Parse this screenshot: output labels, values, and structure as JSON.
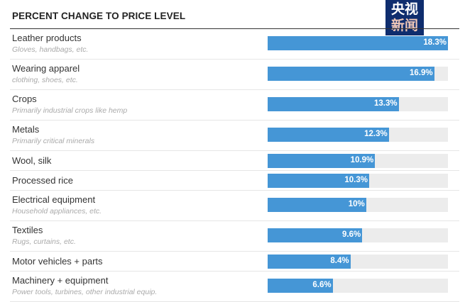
{
  "chart_data": {
    "type": "bar",
    "orientation": "horizontal",
    "title": "PERCENT CHANGE TO PRICE LEVEL",
    "xlim": [
      0,
      18.3
    ],
    "bar_color": "#4596d6",
    "track_color": "#ececec",
    "categories": [
      {
        "label": "Leather products",
        "sub": "Gloves, handbags, etc.",
        "value": 18.3,
        "value_label": "18.3%"
      },
      {
        "label": "Wearing apparel",
        "sub": "clothing, shoes, etc.",
        "value": 16.9,
        "value_label": "16.9%"
      },
      {
        "label": "Crops",
        "sub": "Primarily industrial crops like hemp",
        "value": 13.3,
        "value_label": "13.3%"
      },
      {
        "label": "Metals",
        "sub": "Primarily critical minerals",
        "value": 12.3,
        "value_label": "12.3%"
      },
      {
        "label": "Wool, silk",
        "sub": "",
        "value": 10.9,
        "value_label": "10.9%"
      },
      {
        "label": "Processed rice",
        "sub": "",
        "value": 10.3,
        "value_label": "10.3%"
      },
      {
        "label": "Electrical equipment",
        "sub": "Household appliances, etc.",
        "value": 10,
        "value_label": "10%"
      },
      {
        "label": "Textiles",
        "sub": "Rugs, curtains, etc.",
        "value": 9.6,
        "value_label": "9.6%"
      },
      {
        "label": "Motor vehicles + parts",
        "sub": "",
        "value": 8.4,
        "value_label": "8.4%"
      },
      {
        "label": "Machinery + equipment",
        "sub": "Power tools, turbines, other industrial equip.",
        "value": 6.6,
        "value_label": "6.6%"
      }
    ]
  },
  "watermark": {
    "line1": "央视",
    "line2": "新闻"
  }
}
